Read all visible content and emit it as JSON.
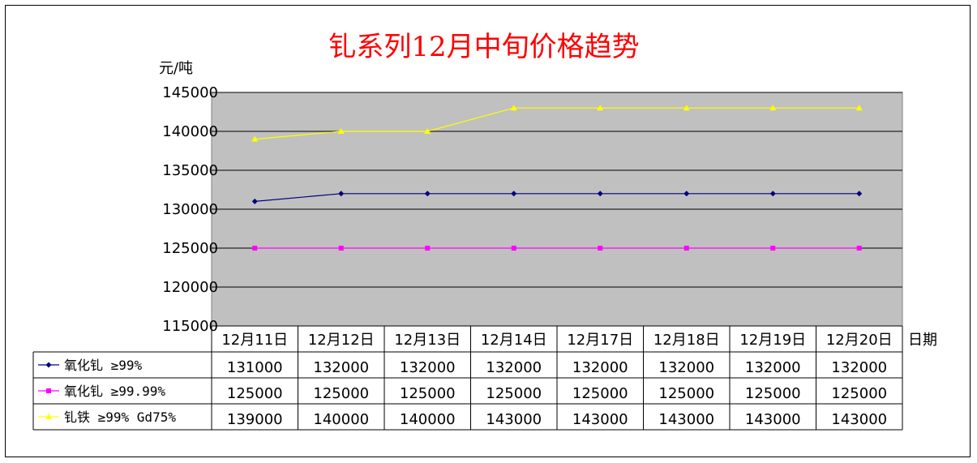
{
  "chart_data": {
    "type": "line",
    "title": "钆系列12月中旬价格趋势",
    "ylabel": "元/吨",
    "xlabel": "日期",
    "ylim": [
      115000,
      145000
    ],
    "yticks": [
      115000,
      120000,
      125000,
      130000,
      135000,
      140000,
      145000
    ],
    "categories": [
      "12月11日",
      "12月12日",
      "12月13日",
      "12月14日",
      "12月17日",
      "12月18日",
      "12月19日",
      "12月20日"
    ],
    "grid": true,
    "legend": "data-table-below",
    "plot_background": "#c0c0c0",
    "series": [
      {
        "name": "氧化钆 ≥99%",
        "color": "#000080",
        "marker": "diamond",
        "values": [
          131000,
          132000,
          132000,
          132000,
          132000,
          132000,
          132000,
          132000
        ]
      },
      {
        "name": "氧化钆 ≥99.99%",
        "color": "#ff00ff",
        "marker": "square",
        "values": [
          125000,
          125000,
          125000,
          125000,
          125000,
          125000,
          125000,
          125000
        ]
      },
      {
        "name": "钆铁 ≥99% Gd75%",
        "color": "#ffff00",
        "marker": "triangle",
        "values": [
          139000,
          140000,
          140000,
          143000,
          143000,
          143000,
          143000,
          143000
        ]
      }
    ]
  }
}
